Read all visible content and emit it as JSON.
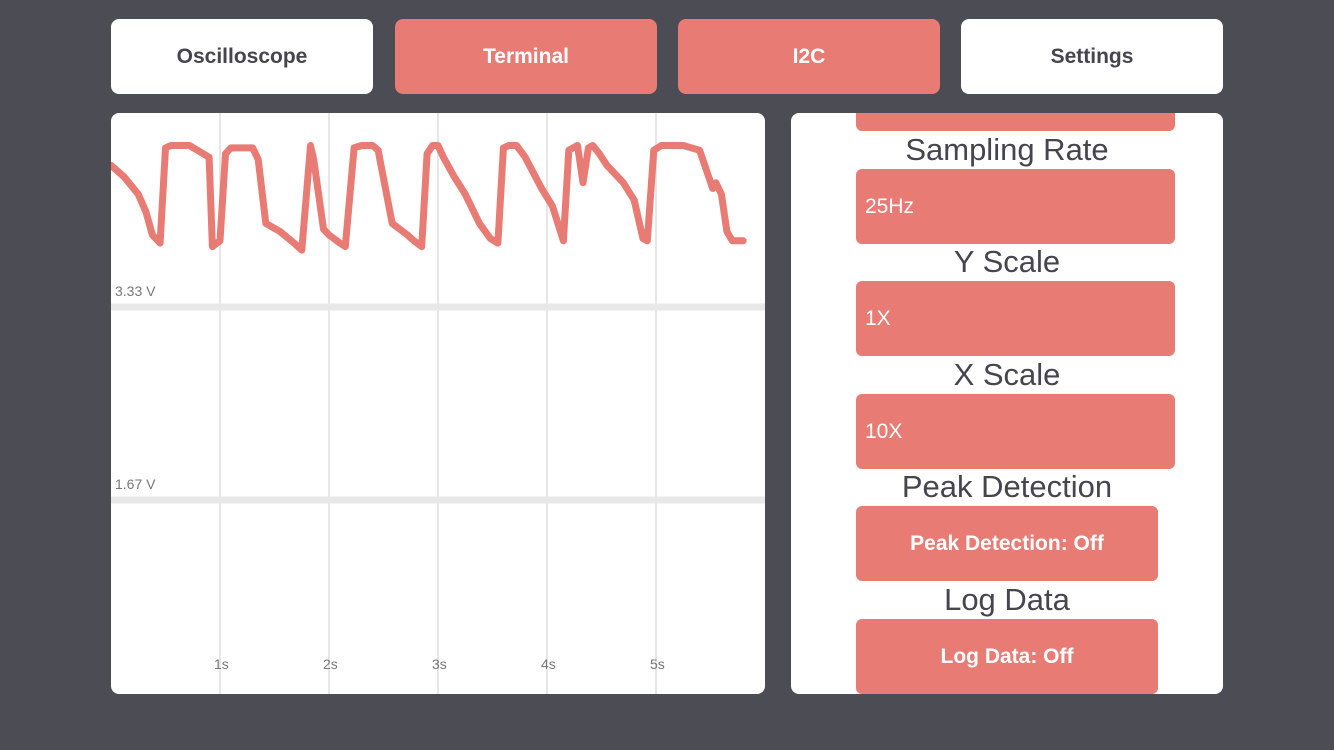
{
  "tabs": {
    "oscilloscope": "Oscilloscope",
    "terminal": "Terminal",
    "i2c": "I2C",
    "settings": "Settings"
  },
  "chart_data": {
    "type": "line",
    "title": "",
    "xlabel": "",
    "ylabel": "",
    "x_ticks": [
      "1s",
      "2s",
      "3s",
      "4s",
      "5s"
    ],
    "y_ticks": [
      "3.33 V",
      "1.67 V"
    ],
    "xlim": [
      0,
      6
    ],
    "ylim": [
      0,
      5
    ],
    "series": [
      {
        "color": "#e87c74",
        "x": [
          0.0,
          0.12,
          0.25,
          0.32,
          0.38,
          0.45,
          0.5,
          0.55,
          0.62,
          0.72,
          0.9,
          0.93,
          1.0,
          1.05,
          1.1,
          1.3,
          1.35,
          1.42,
          1.55,
          1.68,
          1.75,
          1.83,
          1.86,
          1.95,
          2.0,
          2.1,
          2.15,
          2.23,
          2.3,
          2.4,
          2.45,
          2.58,
          2.72,
          2.78,
          2.85,
          2.9,
          2.95,
          3.0,
          3.05,
          3.15,
          3.25,
          3.38,
          3.48,
          3.55,
          3.6,
          3.65,
          3.72,
          3.8,
          3.95,
          4.05,
          4.1,
          4.15,
          4.2,
          4.28,
          4.33,
          4.38,
          4.42,
          4.48,
          4.55,
          4.7,
          4.8,
          4.88,
          4.92,
          4.98,
          5.05,
          5.12,
          5.25,
          5.4,
          5.52,
          5.55,
          5.6,
          5.65,
          5.7,
          5.75,
          5.8
        ],
        "y": [
          4.55,
          4.45,
          4.3,
          4.15,
          3.95,
          3.88,
          4.7,
          4.72,
          4.72,
          4.72,
          4.62,
          3.85,
          3.9,
          4.65,
          4.7,
          4.7,
          4.6,
          4.05,
          3.98,
          3.88,
          3.82,
          4.72,
          4.6,
          4.0,
          3.95,
          3.88,
          3.85,
          4.7,
          4.72,
          4.72,
          4.68,
          4.05,
          3.95,
          3.9,
          3.85,
          4.65,
          4.72,
          4.72,
          4.62,
          4.45,
          4.3,
          4.05,
          3.92,
          3.88,
          4.7,
          4.72,
          4.72,
          4.62,
          4.35,
          4.2,
          4.05,
          3.9,
          4.68,
          4.72,
          4.4,
          4.7,
          4.72,
          4.65,
          4.55,
          4.4,
          4.25,
          3.92,
          3.9,
          4.68,
          4.72,
          4.72,
          4.72,
          4.68,
          4.35,
          4.4,
          4.3,
          3.98,
          3.9,
          3.9,
          3.9
        ]
      }
    ]
  },
  "settings_panel": {
    "sampling_rate_label": "Sampling Rate",
    "sampling_rate_value": "25Hz",
    "y_scale_label": "Y Scale",
    "y_scale_value": "1X",
    "x_scale_label": "X Scale",
    "x_scale_value": "10X",
    "peak_detection_label": "Peak Detection",
    "peak_detection_button": "Peak Detection: Off",
    "log_data_label": "Log Data",
    "log_data_button": "Log Data: Off"
  },
  "colors": {
    "background": "#4c4c55",
    "accent": "#e87c74",
    "panel": "#ffffff",
    "text": "#45454e"
  }
}
